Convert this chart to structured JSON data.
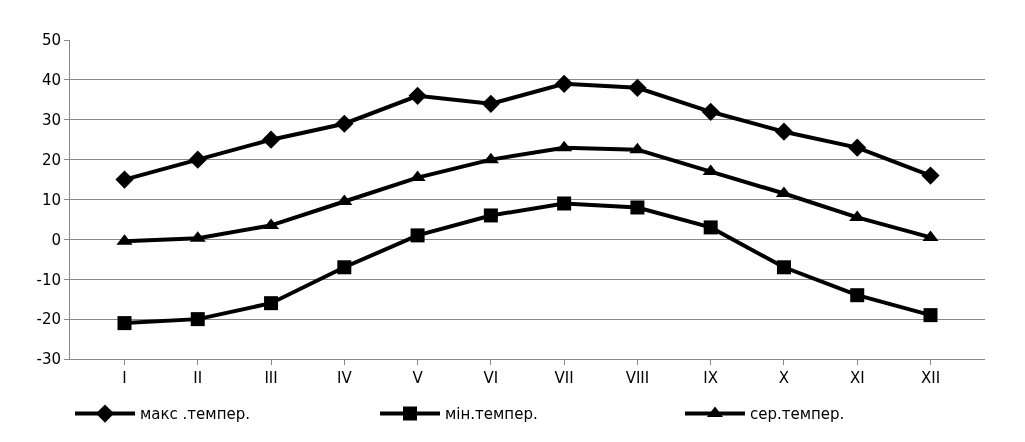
{
  "chart_data": {
    "type": "line",
    "categories": [
      "I",
      "II",
      "III",
      "IV",
      "V",
      "VI",
      "VII",
      "VIII",
      "IX",
      "X",
      "XI",
      "XII"
    ],
    "series": [
      {
        "name": "макс .темпер.",
        "color": "#000000",
        "marker": "diamond",
        "values": [
          15,
          20,
          25,
          29,
          36,
          34,
          39,
          38,
          32,
          27,
          23,
          16
        ]
      },
      {
        "name": "мін.темпер.",
        "color": "#000000",
        "marker": "square",
        "values": [
          -21,
          -20,
          -16,
          -7,
          1,
          6,
          9,
          8,
          3,
          -7,
          -14,
          -19
        ]
      },
      {
        "name": "сер.темпер.",
        "color": "#000000",
        "marker": "triangle",
        "values": [
          -0.5,
          0.3,
          3.5,
          9.5,
          15.5,
          20,
          23,
          22.5,
          17,
          11.5,
          5.5,
          0.5
        ]
      }
    ],
    "ylim": [
      -30,
      50
    ],
    "yticks": [
      -30,
      -20,
      -10,
      0,
      10,
      20,
      30,
      40,
      50
    ],
    "grid": "y",
    "legend": "bottom",
    "line_style": "solid"
  }
}
